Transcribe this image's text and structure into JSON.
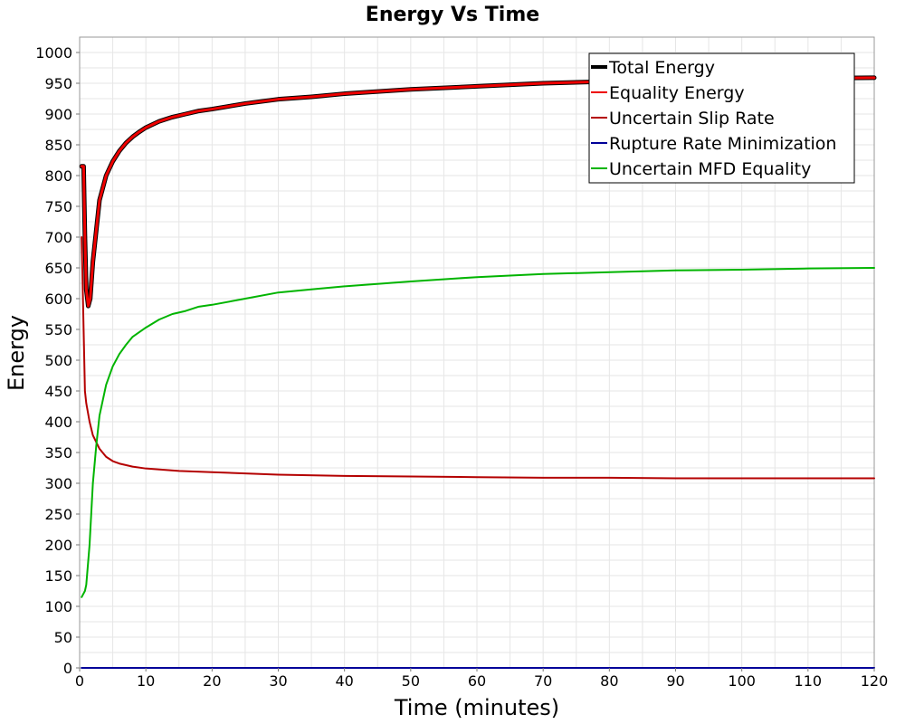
{
  "chart_data": {
    "type": "line",
    "title": "Energy Vs Time",
    "xlabel": "Time (minutes)",
    "ylabel": "Energy",
    "xlim": [
      0,
      120
    ],
    "ylim": [
      0,
      1025
    ],
    "x_ticks": [
      0,
      10,
      20,
      30,
      40,
      50,
      60,
      70,
      80,
      90,
      100,
      110,
      120
    ],
    "y_ticks": [
      0,
      50,
      100,
      150,
      200,
      250,
      300,
      350,
      400,
      450,
      500,
      550,
      600,
      650,
      700,
      750,
      800,
      850,
      900,
      950,
      1000
    ],
    "grid": true,
    "legend_position": "top-right",
    "series": [
      {
        "name": "Total Energy",
        "color": "#000000",
        "width": 5,
        "points": [
          [
            0.3,
            815
          ],
          [
            0.6,
            815
          ],
          [
            0.8,
            700
          ],
          [
            1,
            615
          ],
          [
            1.3,
            588
          ],
          [
            1.6,
            600
          ],
          [
            2,
            660
          ],
          [
            2.5,
            710
          ],
          [
            3,
            760
          ],
          [
            4,
            800
          ],
          [
            5,
            823
          ],
          [
            6,
            840
          ],
          [
            7,
            853
          ],
          [
            8,
            863
          ],
          [
            9,
            871
          ],
          [
            10,
            878
          ],
          [
            12,
            888
          ],
          [
            14,
            895
          ],
          [
            16,
            900
          ],
          [
            18,
            905
          ],
          [
            20,
            908
          ],
          [
            25,
            917
          ],
          [
            30,
            924
          ],
          [
            35,
            928
          ],
          [
            40,
            933
          ],
          [
            50,
            940
          ],
          [
            60,
            945
          ],
          [
            70,
            950
          ],
          [
            80,
            953
          ],
          [
            90,
            955
          ],
          [
            100,
            957
          ],
          [
            110,
            958
          ],
          [
            120,
            959
          ]
        ]
      },
      {
        "name": "Equality Energy",
        "color": "#ee0000",
        "width": 3,
        "points": [
          [
            0.3,
            815
          ],
          [
            0.6,
            815
          ],
          [
            0.8,
            700
          ],
          [
            1,
            615
          ],
          [
            1.3,
            588
          ],
          [
            1.6,
            600
          ],
          [
            2,
            660
          ],
          [
            2.5,
            710
          ],
          [
            3,
            760
          ],
          [
            4,
            800
          ],
          [
            5,
            823
          ],
          [
            6,
            840
          ],
          [
            7,
            853
          ],
          [
            8,
            863
          ],
          [
            9,
            871
          ],
          [
            10,
            878
          ],
          [
            12,
            888
          ],
          [
            14,
            895
          ],
          [
            16,
            900
          ],
          [
            18,
            905
          ],
          [
            20,
            908
          ],
          [
            25,
            917
          ],
          [
            30,
            924
          ],
          [
            35,
            928
          ],
          [
            40,
            933
          ],
          [
            50,
            940
          ],
          [
            60,
            945
          ],
          [
            70,
            950
          ],
          [
            80,
            953
          ],
          [
            90,
            955
          ],
          [
            100,
            957
          ],
          [
            110,
            958
          ],
          [
            120,
            959
          ]
        ]
      },
      {
        "name": "Uncertain Slip Rate",
        "color": "#b40000",
        "width": 2,
        "points": [
          [
            0.3,
            700
          ],
          [
            0.5,
            600
          ],
          [
            0.8,
            450
          ],
          [
            1,
            430
          ],
          [
            1.5,
            400
          ],
          [
            2,
            378
          ],
          [
            3,
            356
          ],
          [
            4,
            343
          ],
          [
            5,
            336
          ],
          [
            6,
            332
          ],
          [
            8,
            327
          ],
          [
            10,
            324
          ],
          [
            15,
            320
          ],
          [
            20,
            318
          ],
          [
            30,
            314
          ],
          [
            40,
            312
          ],
          [
            50,
            311
          ],
          [
            60,
            310
          ],
          [
            70,
            309
          ],
          [
            80,
            309
          ],
          [
            90,
            308
          ],
          [
            100,
            308
          ],
          [
            110,
            308
          ],
          [
            120,
            308
          ]
        ]
      },
      {
        "name": "Rupture Rate Minimization",
        "color": "#000099",
        "width": 2,
        "points": [
          [
            0.3,
            0
          ],
          [
            120,
            0
          ]
        ]
      },
      {
        "name": "Uncertain MFD Equality",
        "color": "#00b400",
        "width": 2,
        "points": [
          [
            0.3,
            115
          ],
          [
            0.8,
            125
          ],
          [
            1,
            135
          ],
          [
            1.5,
            200
          ],
          [
            2,
            300
          ],
          [
            2.5,
            360
          ],
          [
            3,
            410
          ],
          [
            4,
            460
          ],
          [
            5,
            490
          ],
          [
            6,
            510
          ],
          [
            7,
            525
          ],
          [
            8,
            538
          ],
          [
            10,
            553
          ],
          [
            12,
            566
          ],
          [
            14,
            575
          ],
          [
            16,
            580
          ],
          [
            18,
            587
          ],
          [
            20,
            590
          ],
          [
            25,
            600
          ],
          [
            30,
            610
          ],
          [
            35,
            615
          ],
          [
            40,
            620
          ],
          [
            50,
            628
          ],
          [
            60,
            635
          ],
          [
            70,
            640
          ],
          [
            80,
            643
          ],
          [
            90,
            646
          ],
          [
            100,
            647
          ],
          [
            110,
            649
          ],
          [
            120,
            650
          ]
        ]
      }
    ]
  }
}
